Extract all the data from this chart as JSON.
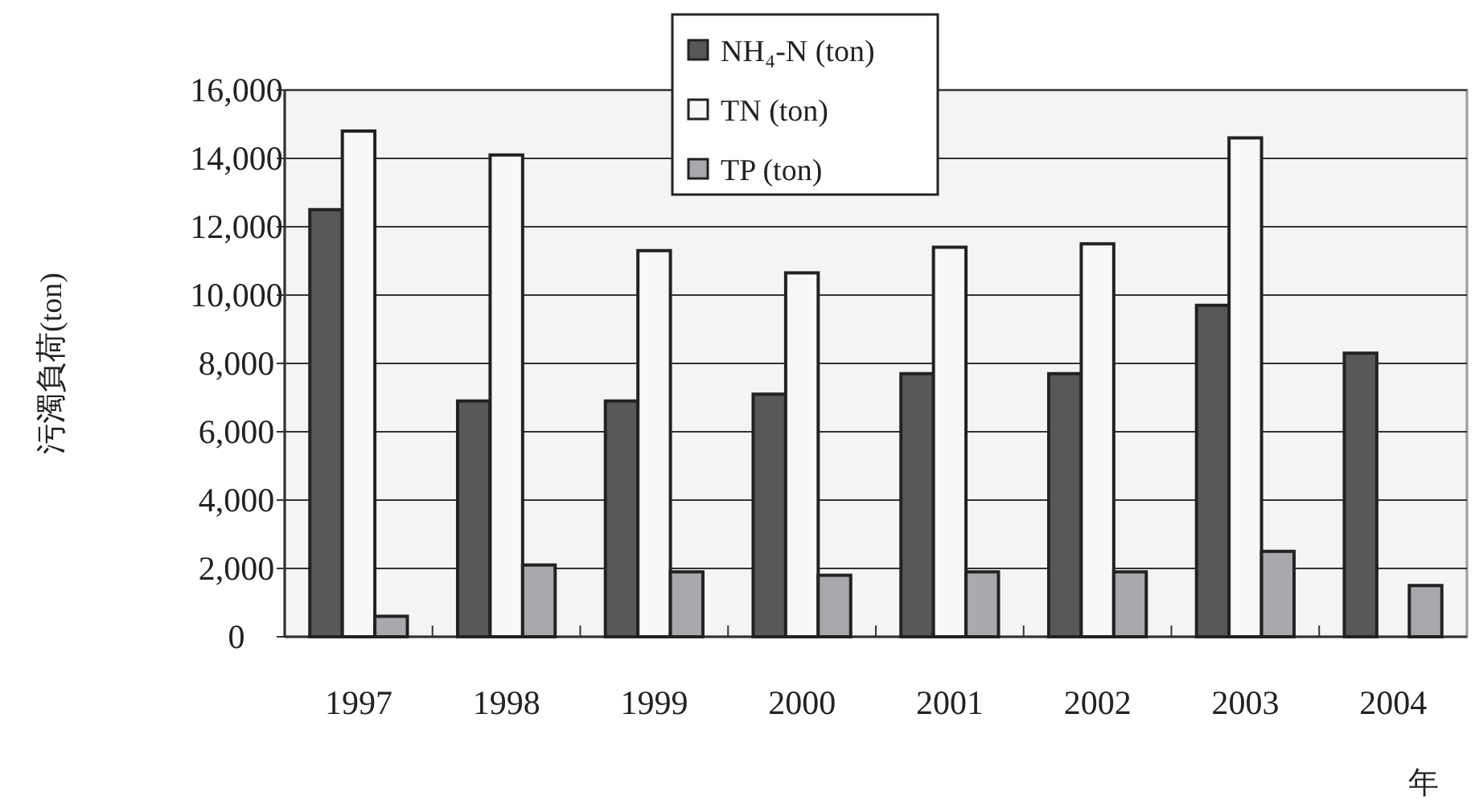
{
  "chart_data": {
    "type": "bar",
    "ylabel": "污濁負荷(ton)",
    "xlabel": "年",
    "categories": [
      "1997",
      "1998",
      "1999",
      "2000",
      "2001",
      "2002",
      "2003",
      "2004"
    ],
    "series": [
      {
        "name": "NH₄-N (ton)",
        "color": "#58585a",
        "values": [
          12500,
          6900,
          6900,
          7100,
          7700,
          7700,
          9700,
          8300
        ]
      },
      {
        "name": "TN (ton)",
        "color": "#f8f8f8",
        "values": [
          14800,
          14100,
          11300,
          10650,
          11400,
          11500,
          14600,
          null
        ]
      },
      {
        "name": "TP (ton)",
        "color": "#a8a9ad",
        "values": [
          600,
          2100,
          1900,
          1800,
          1900,
          1900,
          2500,
          1500
        ]
      }
    ],
    "ylim": [
      0,
      16000
    ],
    "yticks": [
      {
        "value": 0,
        "label": "0"
      },
      {
        "value": 2000,
        "label": "2,000"
      },
      {
        "value": 4000,
        "label": "4,000"
      },
      {
        "value": 6000,
        "label": "6,000"
      },
      {
        "value": 8000,
        "label": "8,000"
      },
      {
        "value": 10000,
        "label": "10,000"
      },
      {
        "value": 12000,
        "label": "12,000"
      },
      {
        "value": 14000,
        "label": "14,000"
      },
      {
        "value": 16000,
        "label": "16,000"
      }
    ],
    "grid": "y",
    "legend": "top"
  }
}
